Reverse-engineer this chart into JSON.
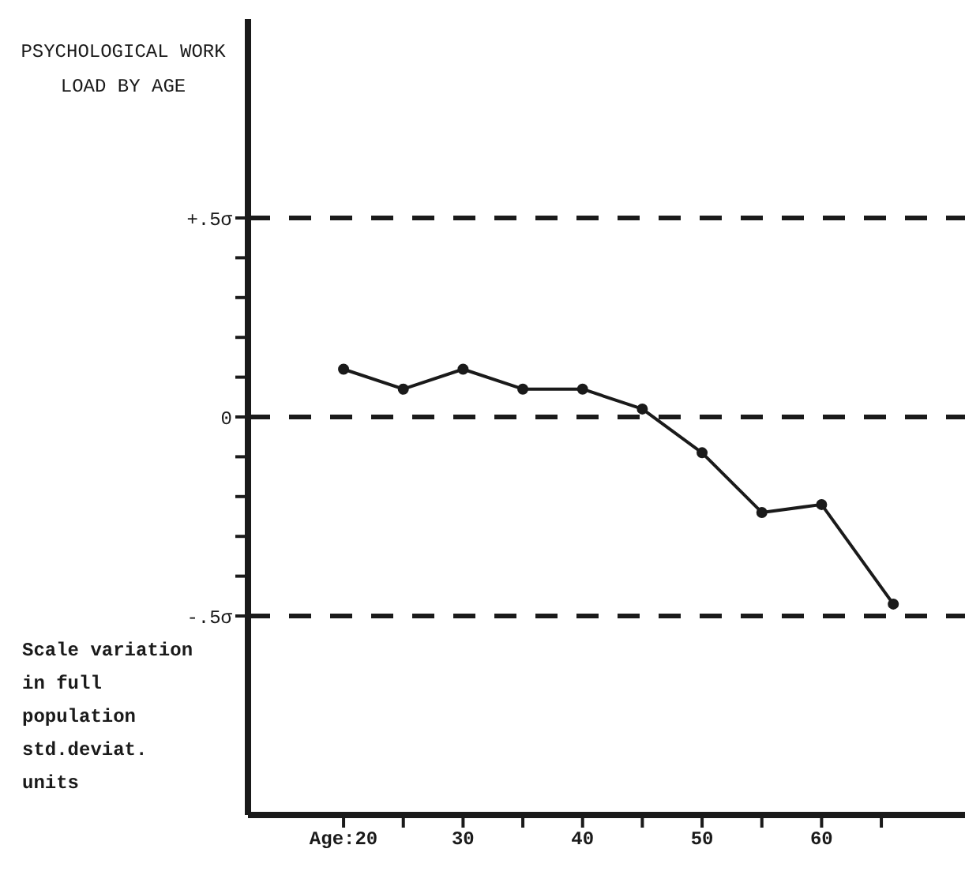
{
  "chart_data": {
    "type": "line",
    "title": "PSYCHOLOGICAL WORK LOAD BY AGE",
    "ylabel": "Scale variation in full population std.deviat. units",
    "x": [
      20,
      25,
      30,
      35,
      40,
      45,
      50,
      55,
      60,
      66
    ],
    "series": [
      {
        "color": "#1a1a1a",
        "values": [
          0.12,
          0.07,
          0.12,
          0.07,
          0.07,
          0.02,
          -0.09,
          -0.24,
          -0.22,
          -0.47
        ]
      }
    ],
    "xlim": [
      12,
      72
    ],
    "xticks": [
      {
        "value": 20,
        "label": "Age:20"
      },
      {
        "value": 25,
        "label": null
      },
      30,
      {
        "value": 35,
        "label": null
      },
      40,
      {
        "value": 45,
        "label": null
      },
      50,
      {
        "value": 55,
        "label": null
      },
      60,
      {
        "value": 65,
        "label": null
      }
    ],
    "ylim": [
      -1,
      1
    ],
    "yticks": [
      {
        "value": 0.5,
        "label": "+.5σ"
      },
      {
        "value": 0.4,
        "label": null
      },
      {
        "value": 0.3,
        "label": null
      },
      {
        "value": 0.2,
        "label": null
      },
      {
        "value": 0.1,
        "label": null
      },
      0,
      {
        "value": -0.1,
        "label": null
      },
      {
        "value": -0.2,
        "label": null
      },
      {
        "value": -0.3,
        "label": null
      },
      {
        "value": -0.4,
        "label": null
      },
      {
        "value": -0.5,
        "label": "-.5σ"
      }
    ],
    "ref_lines": [
      {
        "axis": "y",
        "value": 0.5,
        "color": "#1a1a1a",
        "line_style": "dashed"
      },
      {
        "axis": "y",
        "value": 0,
        "color": "#1a1a1a",
        "line_style": "dashed"
      },
      {
        "axis": "y",
        "value": -0.5,
        "color": "#1a1a1a",
        "line_style": "dashed"
      }
    ],
    "marker": "circle",
    "line_style": "solid"
  }
}
